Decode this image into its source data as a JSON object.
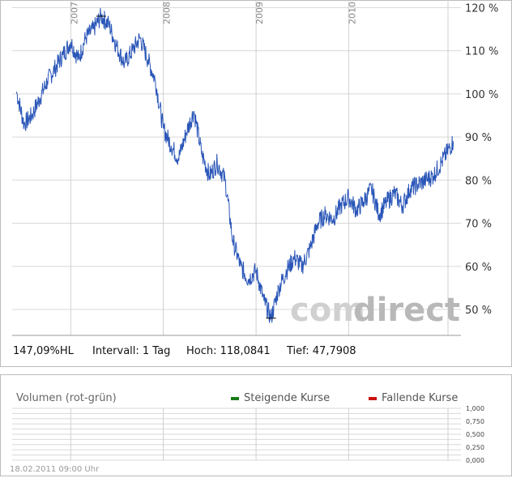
{
  "chart_data": [
    {
      "type": "line",
      "series": [
        {
          "color": "#2a56b8",
          "x": [
            "2006-06-01",
            "2006-07-01",
            "2006-08-01",
            "2006-09-01",
            "2006-10-01",
            "2006-11-01",
            "2006-12-01",
            "2007-01-01",
            "2007-02-01",
            "2007-03-01",
            "2007-04-01",
            "2007-05-01",
            "2007-06-01",
            "2007-07-01",
            "2007-08-01",
            "2007-09-01",
            "2007-10-01",
            "2007-11-01",
            "2007-12-01",
            "2008-01-01",
            "2008-02-01",
            "2008-03-01",
            "2008-04-01",
            "2008-05-01",
            "2008-06-01",
            "2008-07-01",
            "2008-08-01",
            "2008-09-01",
            "2008-10-01",
            "2008-11-01",
            "2008-12-01",
            "2009-01-01",
            "2009-02-01",
            "2009-03-01",
            "2009-04-01",
            "2009-05-01",
            "2009-06-01",
            "2009-07-01",
            "2009-08-01",
            "2009-09-01",
            "2009-10-01",
            "2009-11-01",
            "2009-12-01",
            "2010-01-01",
            "2010-02-01",
            "2010-03-01",
            "2010-04-01",
            "2010-05-01",
            "2010-06-01",
            "2010-07-01",
            "2010-08-01",
            "2010-09-01",
            "2010-10-01",
            "2010-11-01",
            "2010-12-01",
            "2011-01-01",
            "2011-02-18"
          ],
          "values": [
            100.5,
            93,
            95,
            99,
            103,
            106,
            109,
            112,
            108,
            113,
            115,
            118,
            116,
            111,
            107,
            110,
            113,
            108,
            103,
            92,
            88,
            85,
            91,
            96,
            86,
            81,
            84,
            80,
            66,
            60,
            57,
            59,
            52,
            48,
            55,
            59,
            62,
            60,
            64,
            70,
            72,
            71,
            74,
            76,
            73,
            75,
            78,
            72,
            75,
            77,
            74,
            78,
            79,
            80,
            81,
            84,
            89
          ]
        }
      ],
      "xticks": [
        "2007",
        "2008",
        "2009",
        "2010"
      ],
      "yticks": [
        "50 %",
        "60 %",
        "70 %",
        "80 %",
        "90 %",
        "100 %",
        "110 %",
        "120 %"
      ],
      "ylim": [
        44,
        121
      ],
      "grid": true
    },
    {
      "type": "bar",
      "title": "Volumen (rot-grün)",
      "legend": [
        {
          "label": "Steigende Kurse",
          "color": "#1a7a1a"
        },
        {
          "label": "Fallende Kurse",
          "color": "#cc1111"
        }
      ],
      "yticks": [
        "1,000",
        "0,750",
        "0,500",
        "0,250",
        "0,000"
      ],
      "ylim": [
        0,
        1
      ],
      "values": []
    }
  ],
  "stats": {
    "type_label": "147,09%HL",
    "interval": "Intervall: 1 Tag",
    "high": "Hoch: 118,0841",
    "low": "Tief: 47,7908"
  },
  "watermark": {
    "left": "com",
    "right": "direct"
  },
  "timestamp": "18.02.2011 09:00 Uhr"
}
